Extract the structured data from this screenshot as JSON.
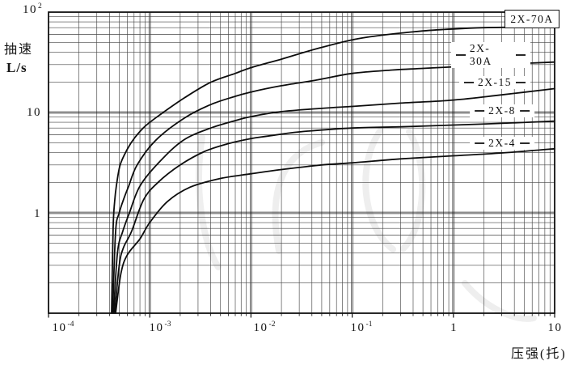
{
  "chart_data": {
    "type": "line",
    "title": "",
    "xlabel": "压强(托)",
    "ylabel_line1": "抽速",
    "ylabel_line2": "L/s",
    "x_scale": "log",
    "y_scale": "log",
    "xlim": [
      0.0001,
      10
    ],
    "ylim": [
      0.1,
      100
    ],
    "grid": "full log grid, major and minor lines",
    "legend_position": "inline labels at right of curves",
    "x_ticks": [
      {
        "base": "10",
        "exp": "-4"
      },
      {
        "base": "10",
        "exp": "-3"
      },
      {
        "base": "10",
        "exp": "-2"
      },
      {
        "base": "10",
        "exp": "-1"
      },
      {
        "base": "1",
        "exp": ""
      },
      {
        "base": "10",
        "exp": ""
      }
    ],
    "y_ticks": [
      {
        "base": "10",
        "exp": "2"
      },
      {
        "base": "10",
        "exp": ""
      },
      {
        "base": "1",
        "exp": ""
      }
    ],
    "series": [
      {
        "name": "2X-70A",
        "points": [
          [
            0.00042,
            0.1
          ],
          [
            0.000435,
            0.7
          ],
          [
            0.00045,
            1.3
          ],
          [
            0.00047,
            1.9
          ],
          [
            0.00051,
            3.0
          ],
          [
            0.0006,
            4.3
          ],
          [
            0.00071,
            5.6
          ],
          [
            0.0009,
            7.3
          ],
          [
            0.0013,
            9.7
          ],
          [
            0.0022,
            14
          ],
          [
            0.004,
            20
          ],
          [
            0.007,
            24.5
          ],
          [
            0.01,
            28
          ],
          [
            0.02,
            34
          ],
          [
            0.044,
            43
          ],
          [
            0.1,
            53
          ],
          [
            0.2,
            59
          ],
          [
            0.5,
            65
          ],
          [
            1,
            68
          ],
          [
            2,
            70
          ],
          [
            5,
            71
          ],
          [
            10,
            72
          ]
        ]
      },
      {
        "name": "2X-30A",
        "points": [
          [
            0.00043,
            0.1
          ],
          [
            0.00046,
            0.65
          ],
          [
            0.0005,
            1.0
          ],
          [
            0.00055,
            1.35
          ],
          [
            0.00062,
            1.85
          ],
          [
            0.00075,
            3.0
          ],
          [
            0.00115,
            5.3
          ],
          [
            0.0022,
            8.8
          ],
          [
            0.004,
            12
          ],
          [
            0.007,
            14.5
          ],
          [
            0.01,
            16
          ],
          [
            0.02,
            18.5
          ],
          [
            0.044,
            21
          ],
          [
            0.1,
            24.5
          ],
          [
            0.25,
            26.5
          ],
          [
            0.5,
            27.5
          ],
          [
            1,
            28.5
          ],
          [
            3,
            30.2
          ],
          [
            10,
            31.8
          ]
        ]
      },
      {
        "name": "2X-15",
        "points": [
          [
            0.00044,
            0.1
          ],
          [
            0.00048,
            0.4
          ],
          [
            0.00054,
            0.65
          ],
          [
            0.00063,
            1.0
          ],
          [
            0.0008,
            1.85
          ],
          [
            0.00124,
            3.2
          ],
          [
            0.00215,
            5.3
          ],
          [
            0.004,
            7.0
          ],
          [
            0.007,
            8.3
          ],
          [
            0.01,
            9.1
          ],
          [
            0.02,
            10.2
          ],
          [
            0.05,
            11.0
          ],
          [
            0.1,
            11.5
          ],
          [
            0.3,
            12.4
          ],
          [
            1,
            13.3
          ],
          [
            3,
            15.0
          ],
          [
            10,
            17.3
          ]
        ]
      },
      {
        "name": "2X-8",
        "points": [
          [
            0.00045,
            0.1
          ],
          [
            0.0005,
            0.3
          ],
          [
            0.00055,
            0.45
          ],
          [
            0.00066,
            0.65
          ],
          [
            0.00087,
            1.35
          ],
          [
            0.0012,
            2.0
          ],
          [
            0.002,
            3.0
          ],
          [
            0.0035,
            4.1
          ],
          [
            0.006,
            4.9
          ],
          [
            0.01,
            5.5
          ],
          [
            0.0144,
            5.8
          ],
          [
            0.03,
            6.4
          ],
          [
            0.1,
            7.0
          ],
          [
            0.3,
            7.2
          ],
          [
            1,
            7.5
          ],
          [
            3,
            7.8
          ],
          [
            10,
            8.2
          ]
        ]
      },
      {
        "name": "2X-4",
        "points": [
          [
            0.00046,
            0.1
          ],
          [
            0.00052,
            0.25
          ],
          [
            0.0006,
            0.38
          ],
          [
            0.0008,
            0.55
          ],
          [
            0.001,
            0.8
          ],
          [
            0.0015,
            1.3
          ],
          [
            0.0025,
            1.8
          ],
          [
            0.005,
            2.2
          ],
          [
            0.01,
            2.45
          ],
          [
            0.02,
            2.7
          ],
          [
            0.05,
            3.0
          ],
          [
            0.1,
            3.15
          ],
          [
            0.3,
            3.45
          ],
          [
            1,
            3.7
          ],
          [
            3,
            3.95
          ],
          [
            10,
            4.35
          ]
        ]
      }
    ]
  }
}
